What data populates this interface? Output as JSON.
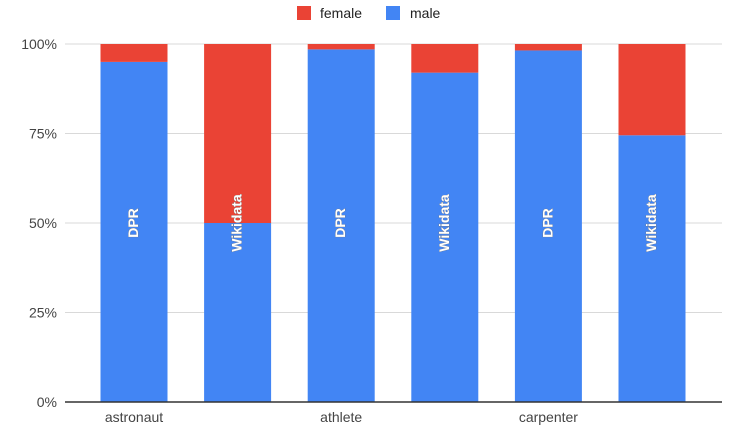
{
  "chart_data": {
    "type": "bar",
    "stacked": "percent",
    "categories": [
      "astronaut",
      "",
      "athlete",
      "",
      "carpenter",
      ""
    ],
    "bar_labels": [
      "DPR",
      "Wikidata",
      "DPR",
      "Wikidata",
      "DPR",
      "Wikidata"
    ],
    "series": [
      {
        "name": "male",
        "color": "#4285f4",
        "values": [
          95,
          50,
          98.5,
          92,
          98.2,
          74.5
        ]
      },
      {
        "name": "female",
        "color": "#ea4335",
        "values": [
          5,
          50,
          1.5,
          8,
          1.8,
          25.5
        ]
      }
    ],
    "legend": [
      {
        "name": "female",
        "color": "#ea4335"
      },
      {
        "name": "male",
        "color": "#4285f4"
      }
    ],
    "legend_position": "top",
    "ylim": [
      0,
      100
    ],
    "yticks": [
      "0%",
      "25%",
      "50%",
      "75%",
      "100%"
    ],
    "grid": true
  }
}
